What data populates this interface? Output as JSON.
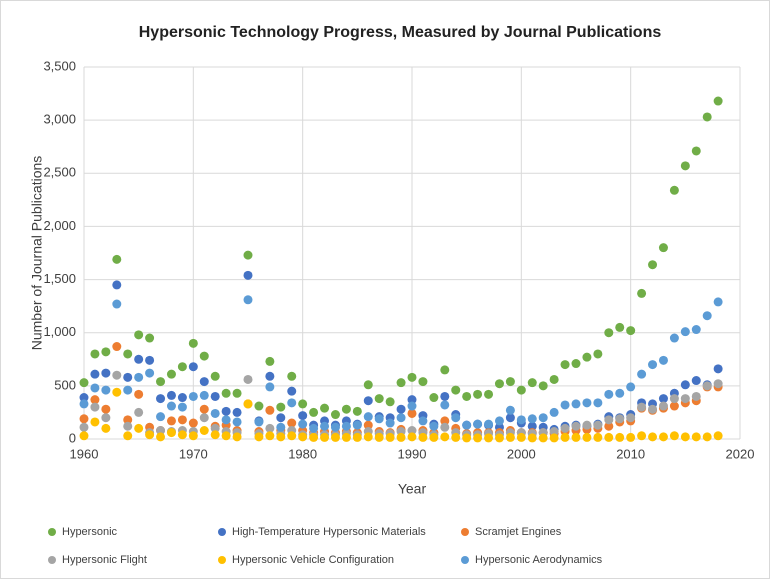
{
  "chart_data": {
    "type": "scatter",
    "title": "Hypersonic Technology Progress, Measured by Journal Publications",
    "x_label": "Year",
    "y_label": "Number of Journal Publications",
    "x": [
      1960,
      1961,
      1962,
      1963,
      1964,
      1965,
      1966,
      1967,
      1968,
      1969,
      1970,
      1971,
      1972,
      1973,
      1974,
      1975,
      1976,
      1977,
      1978,
      1979,
      1980,
      1981,
      1982,
      1983,
      1984,
      1985,
      1986,
      1987,
      1988,
      1989,
      1990,
      1991,
      1992,
      1993,
      1994,
      1995,
      1996,
      1997,
      1998,
      1999,
      2000,
      2001,
      2002,
      2003,
      2004,
      2005,
      2006,
      2007,
      2008,
      2009,
      2010,
      2011,
      2012,
      2013,
      2014,
      2015,
      2016,
      2017,
      2018
    ],
    "series": [
      {
        "name": "Hypersonic",
        "color": "#70ad47",
        "values": [
          530,
          800,
          820,
          1690,
          800,
          980,
          950,
          540,
          610,
          680,
          900,
          780,
          590,
          430,
          430,
          1730,
          310,
          730,
          300,
          590,
          330,
          250,
          290,
          230,
          280,
          260,
          510,
          380,
          350,
          530,
          580,
          540,
          390,
          650,
          460,
          400,
          420,
          420,
          520,
          540,
          460,
          530,
          500,
          560,
          700,
          710,
          770,
          800,
          1000,
          1050,
          1020,
          1370,
          1640,
          1800,
          2340,
          2570,
          2710,
          3030,
          3180
        ]
      },
      {
        "name": "High-Temperature Hypersonic Materials",
        "color": "#4472c4",
        "values": [
          390,
          610,
          620,
          1450,
          580,
          750,
          740,
          380,
          410,
          390,
          680,
          540,
          400,
          260,
          250,
          1540,
          170,
          590,
          200,
          450,
          220,
          130,
          170,
          130,
          170,
          140,
          360,
          210,
          200,
          280,
          370,
          220,
          140,
          400,
          230,
          130,
          140,
          130,
          110,
          200,
          150,
          120,
          110,
          90,
          120,
          130,
          120,
          140,
          210,
          200,
          230,
          340,
          330,
          380,
          430,
          510,
          550,
          510,
          660
        ]
      },
      {
        "name": "Scramjet Engines",
        "color": "#ed7d31",
        "values": [
          190,
          370,
          280,
          870,
          180,
          420,
          110,
          80,
          170,
          180,
          150,
          280,
          120,
          130,
          80,
          330,
          70,
          270,
          80,
          150,
          80,
          60,
          70,
          60,
          70,
          60,
          130,
          70,
          60,
          90,
          240,
          80,
          60,
          170,
          100,
          50,
          60,
          60,
          60,
          80,
          60,
          60,
          60,
          50,
          70,
          80,
          90,
          100,
          120,
          160,
          170,
          290,
          270,
          290,
          310,
          340,
          360,
          490,
          490
        ]
      },
      {
        "name": "Hypersonic Flight",
        "color": "#a5a5a5",
        "values": [
          110,
          300,
          200,
          600,
          120,
          250,
          60,
          80,
          70,
          80,
          70,
          200,
          100,
          70,
          60,
          560,
          50,
          100,
          50,
          80,
          40,
          40,
          40,
          40,
          50,
          40,
          70,
          50,
          50,
          70,
          80,
          60,
          40,
          110,
          60,
          40,
          40,
          50,
          40,
          60,
          60,
          50,
          60,
          70,
          100,
          120,
          130,
          130,
          180,
          190,
          200,
          300,
          280,
          310,
          380,
          380,
          400,
          500,
          520
        ]
      },
      {
        "name": "Hypersonic Vehicle Configuration",
        "color": "#ffc000",
        "values": [
          30,
          160,
          100,
          440,
          30,
          100,
          40,
          20,
          60,
          40,
          30,
          80,
          40,
          30,
          20,
          330,
          20,
          30,
          20,
          30,
          20,
          15,
          15,
          15,
          15,
          15,
          20,
          15,
          15,
          15,
          20,
          15,
          15,
          20,
          15,
          10,
          10,
          10,
          10,
          15,
          15,
          10,
          10,
          10,
          15,
          15,
          15,
          15,
          15,
          15,
          15,
          30,
          20,
          20,
          30,
          20,
          20,
          20,
          30
        ]
      },
      {
        "name": "Hypersonic Aerodynamics",
        "color": "#5b9bd5",
        "values": [
          330,
          480,
          460,
          1270,
          460,
          580,
          620,
          210,
          310,
          300,
          400,
          410,
          240,
          180,
          160,
          1310,
          160,
          490,
          110,
          340,
          140,
          100,
          120,
          110,
          120,
          130,
          210,
          190,
          150,
          200,
          310,
          170,
          120,
          320,
          200,
          130,
          140,
          140,
          170,
          270,
          180,
          190,
          200,
          250,
          320,
          330,
          340,
          340,
          420,
          430,
          490,
          610,
          700,
          740,
          950,
          1010,
          1030,
          1160,
          1290
        ]
      }
    ],
    "xlim": [
      1960,
      2020
    ],
    "xticks": [
      1960,
      1970,
      1980,
      1990,
      2000,
      2010,
      2020
    ],
    "ylim": [
      0,
      3500
    ],
    "yticks": [
      0,
      500,
      {
        "value": 1000,
        "label": "1,000"
      },
      {
        "value": 1500,
        "label": "1,500"
      },
      {
        "value": 2000,
        "label": "2,000"
      },
      {
        "value": 2500,
        "label": "2,500"
      },
      {
        "value": 3000,
        "label": "3,000"
      },
      {
        "value": 3500,
        "label": "3,500"
      }
    ],
    "grid": true,
    "legend": "bottom"
  }
}
